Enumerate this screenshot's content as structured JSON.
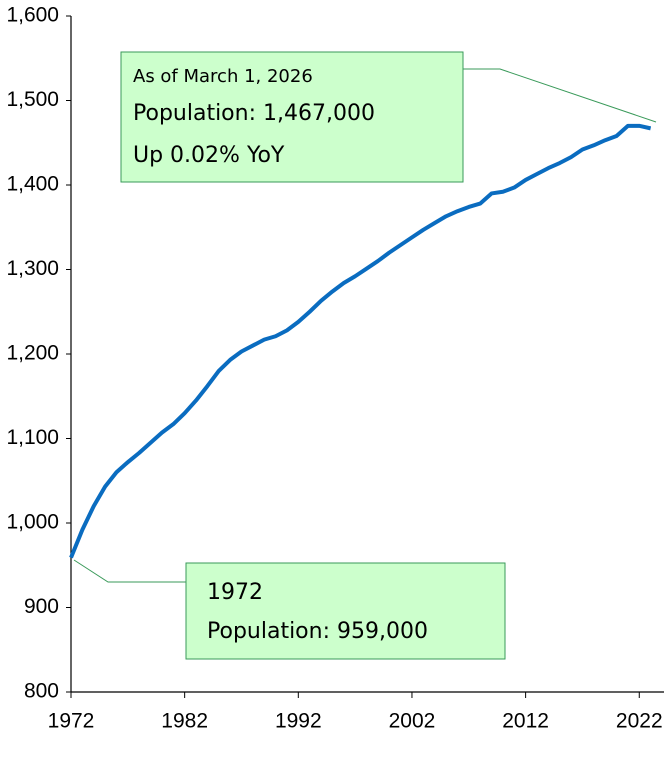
{
  "chart_data": {
    "type": "line",
    "x": [
      1972,
      1973,
      1974,
      1975,
      1976,
      1977,
      1978,
      1979,
      1980,
      1981,
      1982,
      1983,
      1984,
      1985,
      1986,
      1987,
      1988,
      1989,
      1990,
      1991,
      1992,
      1993,
      1994,
      1995,
      1996,
      1997,
      1998,
      1999,
      2000,
      2001,
      2002,
      2003,
      2004,
      2005,
      2006,
      2007,
      2008,
      2009,
      2010,
      2011,
      2012,
      2013,
      2014,
      2015,
      2016,
      2017,
      2018,
      2019,
      2020,
      2021,
      2022,
      2023
    ],
    "series": [
      {
        "color": "#0a6cc0",
        "values": [
          959,
          992,
          1020,
          1043,
          1060,
          1072,
          1083,
          1095,
          1107,
          1117,
          1130,
          1145,
          1162,
          1180,
          1193,
          1203,
          1210,
          1217,
          1221,
          1228,
          1238,
          1250,
          1263,
          1274,
          1284,
          1292,
          1301,
          1310,
          1320,
          1329,
          1338,
          1347,
          1355,
          1363,
          1369,
          1374,
          1378,
          1390,
          1392,
          1397,
          1406,
          1413,
          1420,
          1426,
          1433,
          1442,
          1447,
          1453,
          1458,
          1470,
          1470,
          1467
        ]
      }
    ],
    "xlim": [
      1972,
      2024
    ],
    "xticks": [
      1972,
      1982,
      1992,
      2002,
      2012,
      2022
    ],
    "ylim": [
      800,
      1600
    ],
    "yticks": [
      800,
      900,
      {
        "value": 1000,
        "label": "1,000"
      },
      {
        "value": 1100,
        "label": "1,100"
      },
      {
        "value": 1200,
        "label": "1,200"
      },
      {
        "value": 1300,
        "label": "1,300"
      },
      {
        "value": 1400,
        "label": "1,400"
      },
      {
        "value": 1500,
        "label": "1,500"
      },
      {
        "value": 1600,
        "label": "1,600"
      }
    ],
    "annotations": [
      {
        "lines": [
          "As of March 1, 2026",
          "Population: 1,467,000",
          "Up 0.02% YoY"
        ]
      },
      {
        "lines": [
          "1972",
          "Population: 959,000"
        ]
      }
    ]
  }
}
